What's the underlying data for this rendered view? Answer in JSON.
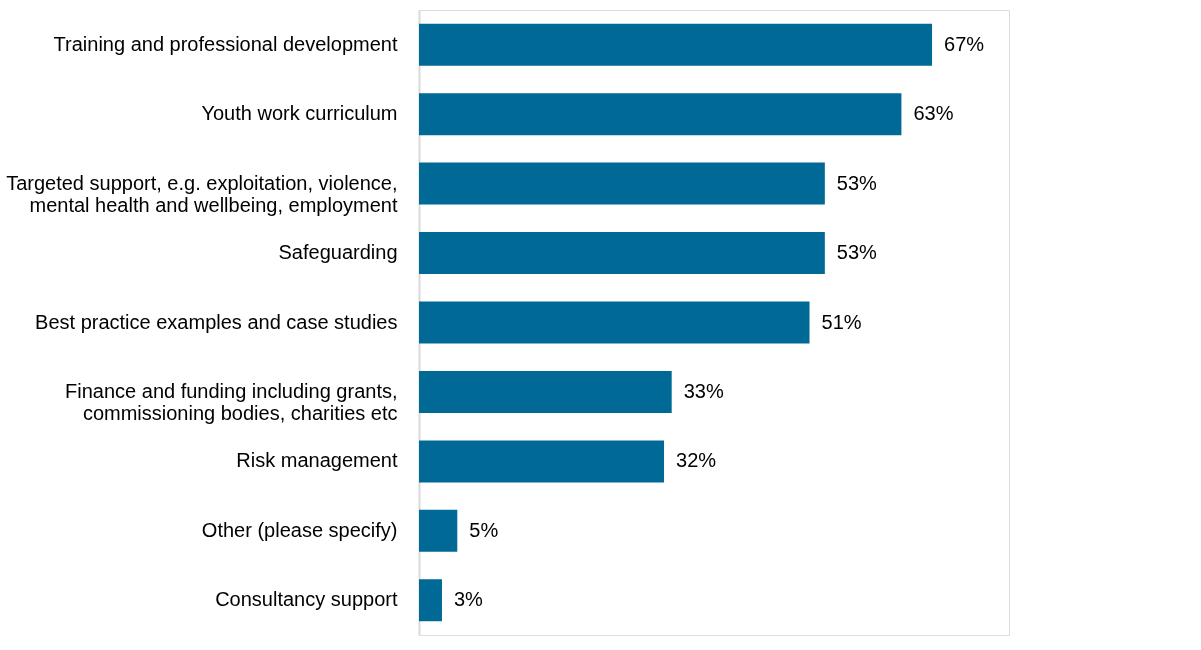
{
  "chart_data": {
    "type": "bar",
    "orientation": "horizontal",
    "categories": [
      "Training and professional development",
      "Youth work curriculum",
      "Targeted support, e.g. exploitation, violence,\nmental health and wellbeing, employment",
      "Safeguarding",
      "Best practice examples and case studies",
      "Finance and funding including grants,\ncommissioning bodies, charities etc",
      "Risk management",
      "Other (please specify)",
      "Consultancy support"
    ],
    "values": [
      67,
      63,
      53,
      53,
      51,
      33,
      32,
      5,
      3
    ],
    "value_labels": [
      "67%",
      "63%",
      "53%",
      "53%",
      "51%",
      "33%",
      "32%",
      "5%",
      "3%"
    ],
    "color": "#006996",
    "grid": false
  }
}
